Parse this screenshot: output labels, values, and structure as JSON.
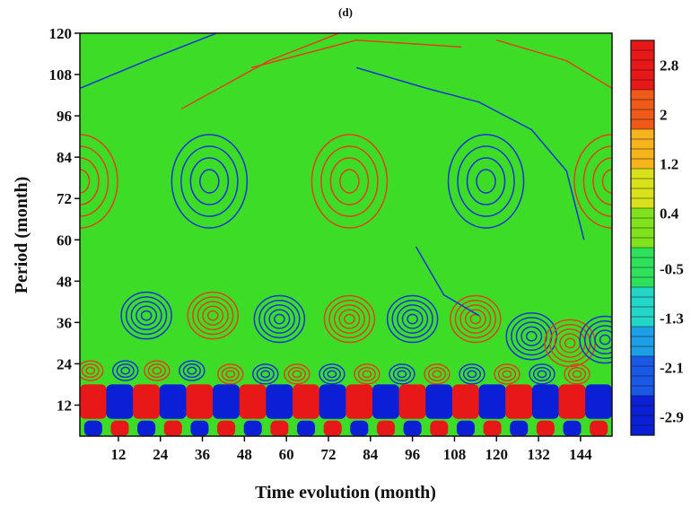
{
  "chart_data": {
    "type": "heatmap",
    "subtype": "wavelet-contour",
    "title": "(d)",
    "xlabel": "Time evolution (month)",
    "ylabel": "Period (month)",
    "x_ticks": [
      12,
      24,
      36,
      48,
      60,
      72,
      84,
      96,
      108,
      120,
      132,
      144
    ],
    "y_ticks": [
      12,
      24,
      36,
      48,
      60,
      72,
      84,
      96,
      108,
      120
    ],
    "xlim": [
      1,
      153
    ],
    "ylim": [
      3,
      120
    ],
    "colorbar": {
      "ticks": [
        2.8,
        2,
        1.2,
        0.4,
        -0.5,
        -1.3,
        -2.1,
        -2.9
      ],
      "tick_labels": [
        "2.8",
        "2",
        "1.2",
        "0.4",
        "-0.5",
        "-1.3",
        "-2.1",
        "-2.9"
      ],
      "range": [
        -3.2,
        3.2
      ],
      "colors": [
        "#0a1fd6",
        "#1a58e8",
        "#1c9fe6",
        "#22d6c8",
        "#2ee05a",
        "#7fe21c",
        "#d8e21a",
        "#f5b41c",
        "#ef5a18",
        "#e81818"
      ]
    },
    "background_value": 0.4,
    "features": [
      {
        "kind": "positive-ring",
        "x": 1,
        "y": 77,
        "peak": 1.2
      },
      {
        "kind": "negative-ring",
        "x": 38,
        "y": 77,
        "peak": -1.3
      },
      {
        "kind": "positive-ring",
        "x": 78,
        "y": 77,
        "peak": 1.4
      },
      {
        "kind": "negative-ring",
        "x": 117,
        "y": 77,
        "peak": -1.3
      },
      {
        "kind": "positive-ring",
        "x": 153,
        "y": 77,
        "peak": 1.2
      },
      {
        "kind": "negative-ring",
        "x": 20,
        "y": 38,
        "peak": -2.0
      },
      {
        "kind": "positive-ring",
        "x": 39,
        "y": 38,
        "peak": 2.0
      },
      {
        "kind": "negative-ring",
        "x": 58,
        "y": 37,
        "peak": -2.0
      },
      {
        "kind": "positive-ring",
        "x": 78,
        "y": 37,
        "peak": 2.0
      },
      {
        "kind": "negative-ring",
        "x": 96,
        "y": 37,
        "peak": -2.0
      },
      {
        "kind": "positive-ring",
        "x": 114,
        "y": 37,
        "peak": 1.5
      },
      {
        "kind": "negative-ring",
        "x": 130,
        "y": 32,
        "peak": -1.4
      },
      {
        "kind": "positive-ring",
        "x": 141,
        "y": 30,
        "peak": 1.2
      },
      {
        "kind": "negative-ring",
        "x": 151,
        "y": 31,
        "peak": -1.2
      },
      {
        "kind": "positive-ring",
        "x": 4,
        "y": 22,
        "peak": 1.5
      },
      {
        "kind": "negative-ring",
        "x": 14,
        "y": 22,
        "peak": -1.8
      },
      {
        "kind": "positive-ring",
        "x": 23,
        "y": 22,
        "peak": 1.8
      },
      {
        "kind": "negative-ring",
        "x": 33,
        "y": 22,
        "peak": -1.8
      },
      {
        "kind": "positive-ring",
        "x": 44,
        "y": 21,
        "peak": 1.8
      },
      {
        "kind": "negative-ring",
        "x": 54,
        "y": 21,
        "peak": -1.8
      },
      {
        "kind": "positive-ring",
        "x": 63,
        "y": 21,
        "peak": 1.6
      },
      {
        "kind": "negative-ring",
        "x": 73,
        "y": 21,
        "peak": -1.6
      },
      {
        "kind": "positive-ring",
        "x": 83,
        "y": 21,
        "peak": 1.6
      },
      {
        "kind": "negative-ring",
        "x": 93,
        "y": 21,
        "peak": -1.6
      },
      {
        "kind": "positive-ring",
        "x": 103,
        "y": 21,
        "peak": 1.6
      },
      {
        "kind": "negative-ring",
        "x": 113,
        "y": 21,
        "peak": -1.6
      },
      {
        "kind": "positive-ring",
        "x": 123,
        "y": 21,
        "peak": 1.5
      },
      {
        "kind": "negative-ring",
        "x": 133,
        "y": 21,
        "peak": -1.5
      },
      {
        "kind": "positive-ring",
        "x": 143,
        "y": 21,
        "peak": 1.5
      }
    ]
  }
}
